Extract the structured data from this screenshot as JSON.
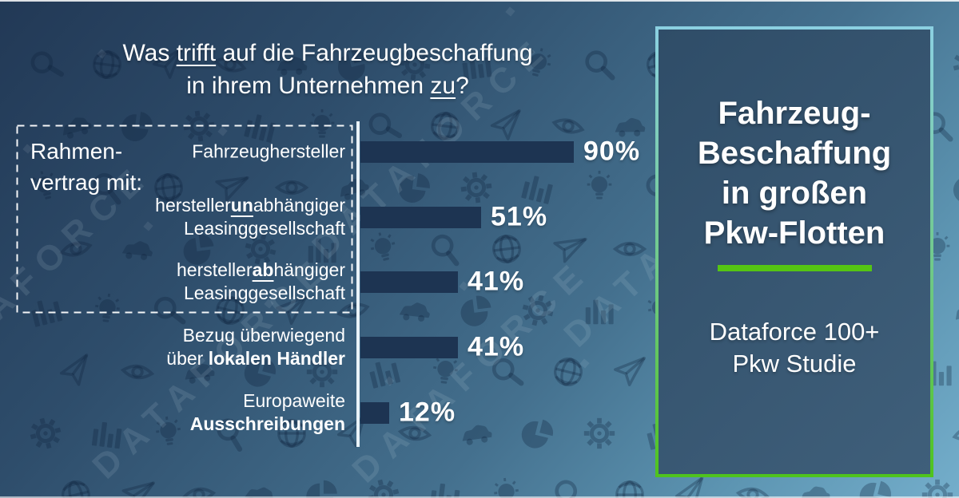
{
  "page": {
    "question": {
      "lines": [
        [
          {
            "text": "Was "
          },
          {
            "text": "trifft",
            "u": true
          },
          {
            "text": " auf die Fahrzeugbeschaffung"
          }
        ],
        [
          {
            "text": "in ihrem Unternehmen "
          },
          {
            "text": "zu",
            "u": true
          },
          {
            "text": "?"
          }
        ]
      ]
    },
    "group_box": {
      "lines": [
        "Rahmen-",
        "vertrag mit:"
      ],
      "full_label": "Rahmenvertrag mit:"
    }
  },
  "chart_data": {
    "type": "bar",
    "orientation": "horizontal",
    "title": "Was trifft auf die Fahrzeugbeschaffung in ihrem Unternehmen zu?",
    "group_label": "Rahmenvertrag mit:",
    "group_rows": [
      0,
      1,
      2
    ],
    "xlim": [
      0,
      100
    ],
    "unit": "%",
    "bar_color": "#1d3452",
    "grid": false,
    "categories": [
      "Fahrzeughersteller",
      "herstellerunabhängiger Leasinggesellschaft",
      "herstellerabhängiger Leasinggesellschaft",
      "Bezug überwiegend über lokalen Händler",
      "Europaweite Ausschreibungen"
    ],
    "values": [
      90,
      51,
      41,
      41,
      12
    ],
    "value_labels": [
      "90%",
      "51%",
      "41%",
      "41%",
      "12%"
    ],
    "rows": [
      {
        "value": 90,
        "value_label": "90%",
        "lines": [
          [
            {
              "text": "Fahrzeughersteller"
            }
          ]
        ]
      },
      {
        "value": 51,
        "value_label": "51%",
        "lines": [
          [
            {
              "text": "hersteller"
            },
            {
              "text": "un",
              "b": true,
              "u": true
            },
            {
              "text": "abhängiger"
            }
          ],
          [
            {
              "text": "Leasinggesellschaft"
            }
          ]
        ]
      },
      {
        "value": 41,
        "value_label": "41%",
        "lines": [
          [
            {
              "text": "hersteller"
            },
            {
              "text": "ab",
              "b": true,
              "u": true
            },
            {
              "text": "hängiger"
            }
          ],
          [
            {
              "text": "Leasinggesellschaft"
            }
          ]
        ]
      },
      {
        "value": 41,
        "value_label": "41%",
        "lines": [
          [
            {
              "text": "Bezug überwiegend"
            }
          ],
          [
            {
              "text": "über "
            },
            {
              "text": "lokalen Händler",
              "b": true
            }
          ]
        ]
      },
      {
        "value": 12,
        "value_label": "12%",
        "lines": [
          [
            {
              "text": "Europaweite"
            }
          ],
          [
            {
              "text": "Ausschreibungen",
              "b": true
            }
          ]
        ]
      }
    ]
  },
  "panel": {
    "title_lines": [
      "Fahrzeug-",
      "Beschaffung",
      "in großen",
      "Pkw-Flotten"
    ],
    "subtitle_lines": [
      "Dataforce 100+",
      "Pkw Studie"
    ],
    "accent_color": "#55c513",
    "border_top_color": "#8bd0e1",
    "border_bottom_color": "#4fc31d",
    "background": "#35536d"
  },
  "watermark": {
    "text": "DATAFORCE"
  },
  "background_icons": [
    "magnifier",
    "globe",
    "paper-plane",
    "eye",
    "car",
    "pie-chart",
    "gear",
    "bar-chart",
    "light-bulb"
  ],
  "colors": {
    "background_top_left": "#223956",
    "background_bottom_right": "#74aecb",
    "bar": "#1d3452",
    "axis_line": "#e9f2f8",
    "text": "#ffffff"
  }
}
